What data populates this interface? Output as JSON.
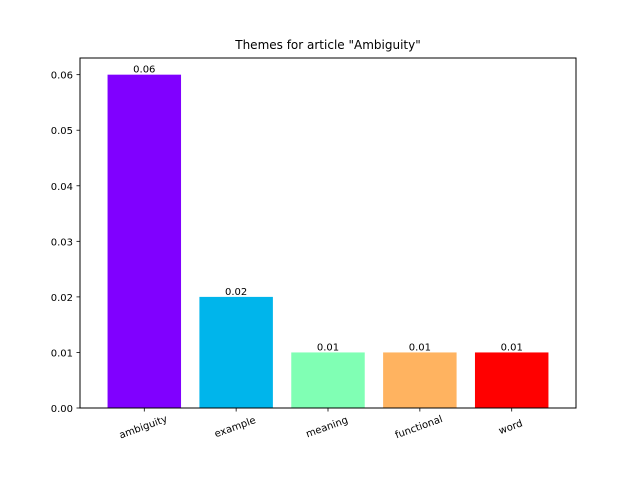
{
  "chart_data": {
    "type": "bar",
    "title": "Themes for article \"Ambiguity\"",
    "xlabel": "",
    "ylabel": "",
    "categories": [
      "ambiguity",
      "example",
      "meaning",
      "functional",
      "word"
    ],
    "values": [
      0.06,
      0.02,
      0.01,
      0.01,
      0.01
    ],
    "value_labels": [
      "0.06",
      "0.02",
      "0.01",
      "0.01",
      "0.01"
    ],
    "colors": [
      "#8000ff",
      "#00b5eb",
      "#80ffb4",
      "#ffb360",
      "#ff0000"
    ],
    "ylim": [
      0,
      0.063
    ],
    "yticks": [
      0.0,
      0.01,
      0.02,
      0.03,
      0.04,
      0.05,
      0.06
    ],
    "ytick_labels": [
      "0.00",
      "0.01",
      "0.02",
      "0.03",
      "0.04",
      "0.05",
      "0.06"
    ],
    "xtick_rotation_deg": 20,
    "grid": false,
    "legend": "none"
  }
}
